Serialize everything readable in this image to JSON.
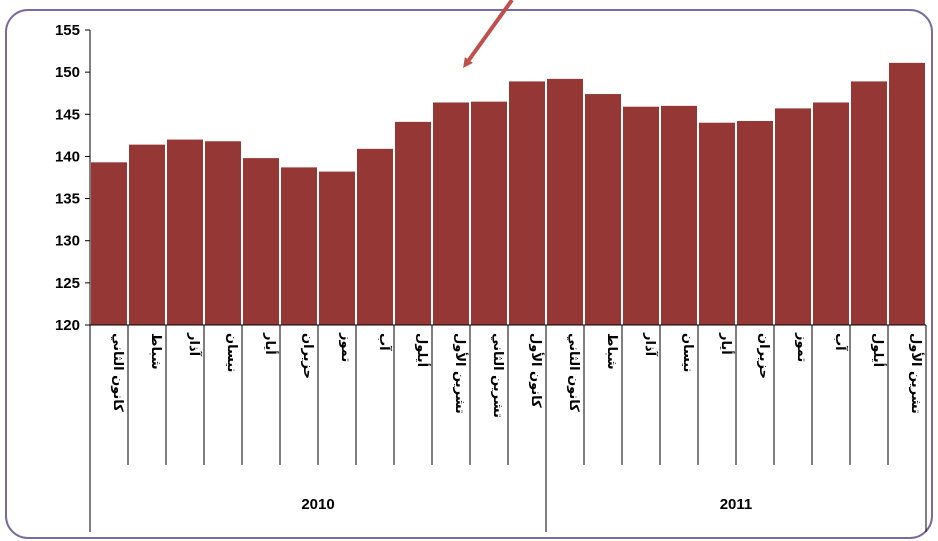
{
  "chart_data": {
    "type": "bar",
    "ylim": [
      120,
      155
    ],
    "yticks": [
      120,
      125,
      130,
      135,
      140,
      145,
      150,
      155
    ],
    "grid": false,
    "legend": "none",
    "bar_color": "#953735",
    "frame_color": "#7a6a9e",
    "arrow_color": "#c0504d",
    "categories": [
      "كانون الثاني",
      "شباط",
      "آذار",
      "نيسان",
      "أيار",
      "حزيران",
      "تموز",
      "آب",
      "أيلول",
      "تشرين الأول",
      "تشرين الثاني",
      "كانون الأول",
      "كانون الثاني",
      "شباط",
      "آذار",
      "نيسان",
      "أيار",
      "حزيران",
      "تموز",
      "آب",
      "أيلول",
      "تشرين الأول"
    ],
    "values": [
      139.3,
      141.4,
      142.0,
      141.8,
      139.8,
      138.7,
      138.2,
      140.9,
      144.1,
      146.4,
      146.5,
      148.9,
      149.2,
      147.4,
      145.9,
      146.0,
      144.0,
      144.2,
      145.7,
      146.4,
      148.9,
      151.1
    ],
    "groups": [
      {
        "label": "2010",
        "count": 12
      },
      {
        "label": "2011",
        "count": 10
      }
    ]
  }
}
